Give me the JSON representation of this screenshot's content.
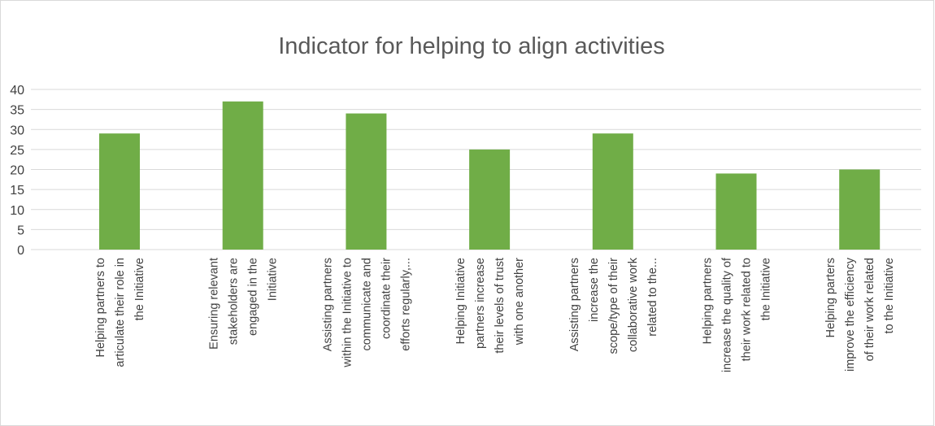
{
  "chart_data": {
    "type": "bar",
    "title": "Indicator for helping to align activities",
    "categories": [
      "Helping partners to\narticulate their role in\nthe Initiative",
      "Ensuring relevant\nstakeholders are\nengaged in the\nInitiative",
      "Assisting partners\nwithin the Initiative to\ncommunicate and\ncoordinate their\nefforts regularly,...",
      "Helping Initiative\npartners increase\ntheir levels of trust\nwith one another",
      "Assisting partners\nincrease the\nscope/type of their\ncollaborative work\nrelated to the...",
      "Helping partners\nincrease the quality of\ntheir work related to\nthe Initiative",
      "Helping parters\nimprove the efficiency\nof their work related\nto the Initiative"
    ],
    "values": [
      29,
      37,
      34,
      25,
      29,
      19,
      20
    ],
    "color": "#70ad47",
    "ylim": [
      0,
      40
    ],
    "yticks": [
      0,
      5,
      10,
      15,
      20,
      25,
      30,
      35,
      40
    ],
    "grid": true
  }
}
